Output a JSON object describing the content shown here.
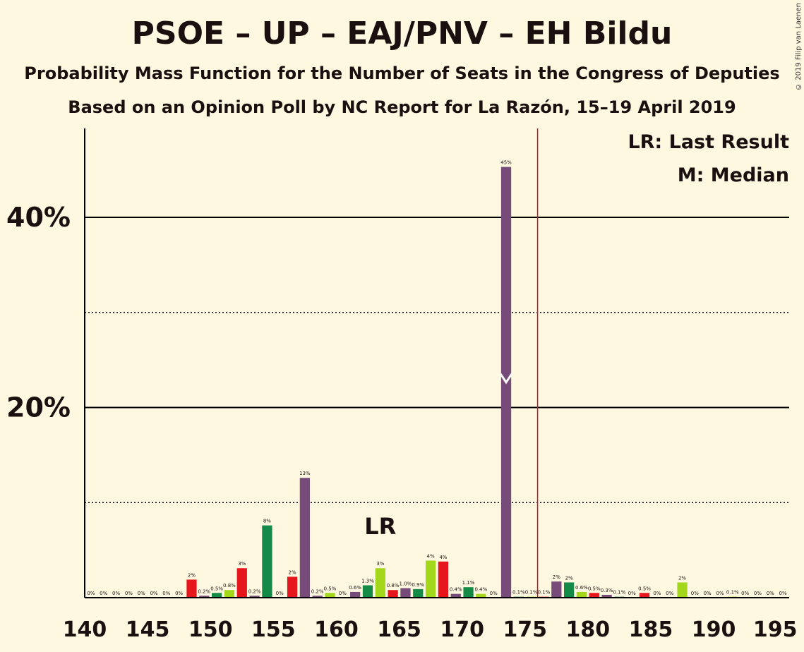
{
  "title": "PSOE – UP – EAJ/PNV – EH Bildu",
  "subtitle1": "Probability Mass Function for the Number of Seats in the Congress of Deputies",
  "subtitle2": "Based on an Opinion Poll by NC Report for La Razón, 15–19 April 2019",
  "copyright": "© 2019 Filip van Laenen",
  "legend": {
    "lr": "LR: Last Result",
    "m": "M: Median"
  },
  "colors": {
    "red": "#E6161D",
    "darkgreen": "#138A45",
    "lightgreen": "#A3D71B",
    "purple": "#764B79",
    "lastresult_line": "#C0142C",
    "background": "#FFF8E1"
  },
  "chart_data": {
    "type": "bar",
    "x": [
      140,
      141,
      142,
      143,
      144,
      145,
      146,
      147,
      148,
      149,
      150,
      151,
      152,
      153,
      154,
      155,
      156,
      157,
      158,
      159,
      160,
      161,
      162,
      163,
      164,
      165,
      166,
      167,
      168,
      169,
      170,
      171,
      172,
      173,
      174,
      175,
      176,
      177,
      178,
      179,
      180,
      181,
      182,
      183,
      184,
      185,
      186,
      187,
      188,
      189,
      190,
      191,
      192,
      193,
      194,
      195
    ],
    "values": [
      0,
      0,
      0,
      0,
      0,
      0,
      0,
      0,
      1.9,
      0.2,
      0.5,
      0.8,
      3.1,
      0.2,
      7.6,
      0,
      2.2,
      12.6,
      0.2,
      0.5,
      0,
      0.6,
      1.3,
      3.1,
      0.8,
      1.0,
      0.9,
      3.9,
      3.8,
      0.4,
      1.1,
      0.4,
      0,
      45.3,
      0.1,
      0.1,
      0.1,
      1.7,
      1.6,
      0.6,
      0.5,
      0.3,
      0.1,
      0,
      0.5,
      0,
      0,
      1.6,
      0,
      0,
      0,
      0.1,
      0,
      0,
      0,
      0
    ],
    "labels": [
      "0%",
      "0%",
      "0%",
      "0%",
      "0%",
      "0%",
      "0%",
      "0%",
      "2%",
      "0.2%",
      "0.5%",
      "0.8%",
      "3%",
      "0.2%",
      "8%",
      "0%",
      "2%",
      "13%",
      "0.2%",
      "0.5%",
      "0%",
      "0.6%",
      "1.3%",
      "3%",
      "0.8%",
      "1.0%",
      "0.9%",
      "4%",
      "4%",
      "0.4%",
      "1.1%",
      "0.4%",
      "0%",
      "45%",
      "0.1%",
      "0.1%",
      "0.1%",
      "2%",
      "2%",
      "0.6%",
      "0.5%",
      "0.3%",
      "0.1%",
      "0%",
      "0.5%",
      "0%",
      "0%",
      "2%",
      "0%",
      "0%",
      "0%",
      "0.1%",
      "0%",
      "0%",
      "0%",
      "0%"
    ],
    "bar_colors": [
      "red",
      "red",
      "lightgreen",
      "purple",
      "darkgreen",
      "red",
      "lightgreen",
      "purple",
      "red",
      "purple",
      "darkgreen",
      "lightgreen",
      "red",
      "purple",
      "darkgreen",
      "red",
      "red",
      "purple",
      "purple",
      "lightgreen",
      "red",
      "purple",
      "darkgreen",
      "lightgreen",
      "red",
      "purple",
      "darkgreen",
      "lightgreen",
      "red",
      "purple",
      "darkgreen",
      "lightgreen",
      "red",
      "purple",
      "darkgreen",
      "lightgreen",
      "red",
      "purple",
      "darkgreen",
      "lightgreen",
      "red",
      "purple",
      "darkgreen",
      "lightgreen",
      "red",
      "purple",
      "darkgreen",
      "lightgreen",
      "red",
      "purple",
      "darkgreen",
      "lightgreen",
      "red",
      "purple",
      "darkgreen",
      "lightgreen"
    ],
    "xticks": [
      140,
      145,
      150,
      155,
      160,
      165,
      170,
      175,
      180,
      185,
      190,
      195
    ],
    "yticks": [
      {
        "value": 20,
        "label": "20%"
      },
      {
        "value": 40,
        "label": "40%"
      }
    ],
    "minor_gridlines": [
      10,
      30
    ],
    "ylim": [
      0,
      49
    ],
    "last_result": 163,
    "last_result_label": "LR",
    "majority_line": 176,
    "median": 173
  }
}
